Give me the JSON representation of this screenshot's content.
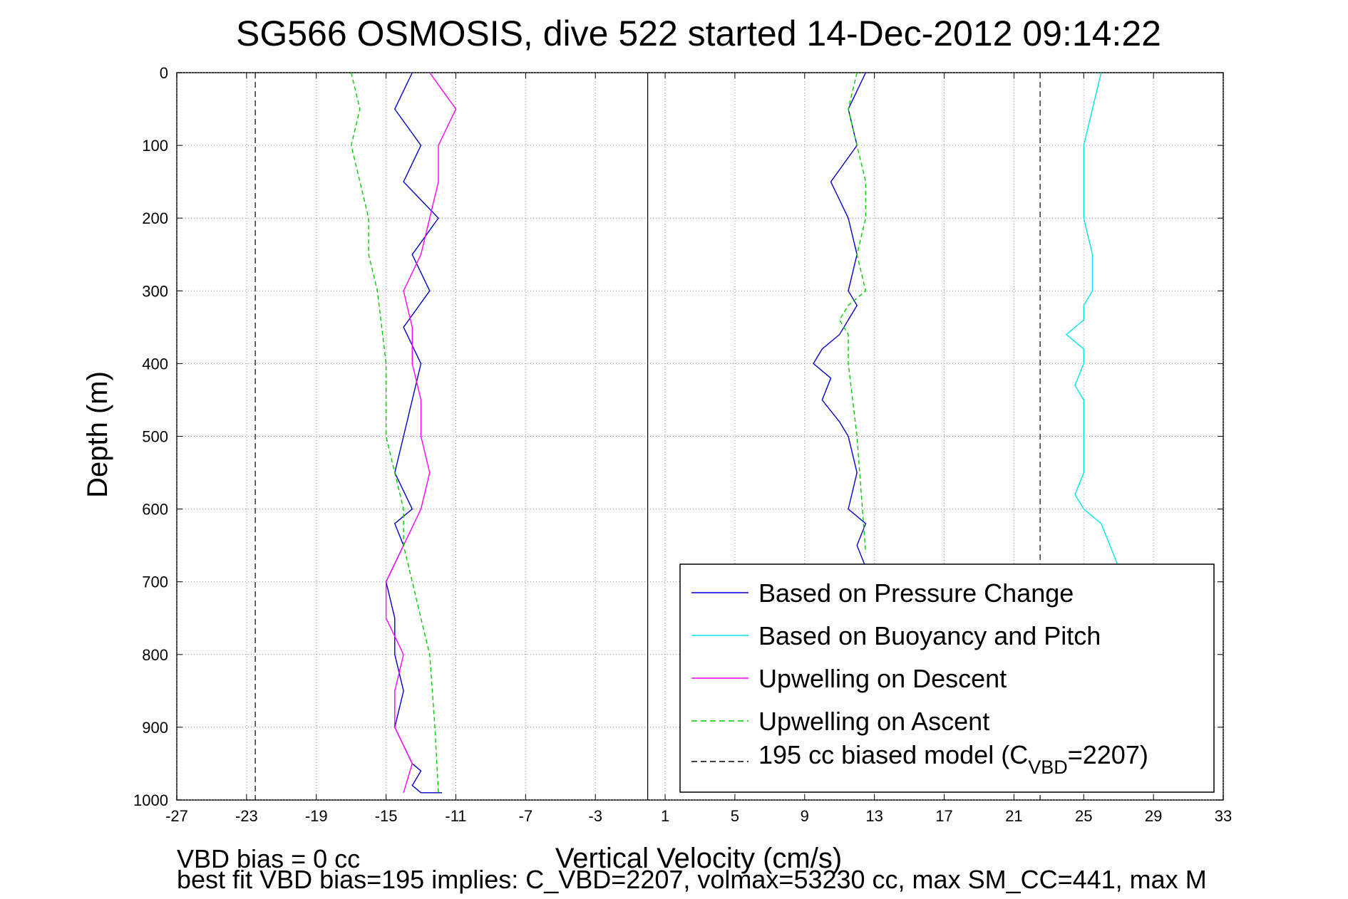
{
  "chart_data": {
    "type": "line",
    "title": "SG566 OSMOSIS, dive 522 started 14-Dec-2012 09:14:22",
    "xlabel": "Vertical Velocity (cm/s)",
    "ylabel": "Depth (m)",
    "xlim": [
      -27,
      33
    ],
    "ylim": [
      0,
      1000
    ],
    "y_reversed": true,
    "grid": true,
    "legend_position": "bottom-right",
    "xticks": [
      "-27",
      "-23",
      "-19",
      "-15",
      "-11",
      "-7",
      "-3",
      "1",
      "5",
      "9",
      "13",
      "17",
      "21",
      "25",
      "29",
      "33"
    ],
    "yticks": [
      "0",
      "100",
      "200",
      "300",
      "400",
      "500",
      "600",
      "700",
      "800",
      "900",
      "1000"
    ],
    "series": [
      {
        "name": "Based on Pressure Change",
        "color": "#0000cc",
        "style": "solid",
        "segments": [
          {
            "x": [
              -13.5,
              -14.5,
              -13,
              -14,
              -12,
              -13.5,
              -12.5,
              -14,
              -13,
              -13.5,
              -14,
              -14.5,
              -13.5,
              -14.5,
              -14,
              -15,
              -14.5,
              -14.5,
              -14,
              -14.5,
              -13.5,
              -13,
              -13.5,
              -13,
              -12.5,
              -12,
              -12,
              -12.2,
              -11.8,
              -12
            ],
            "y": [
              0,
              50,
              100,
              150,
              200,
              250,
              300,
              350,
              400,
              450,
              500,
              550,
              600,
              620,
              650,
              700,
              750,
              800,
              850,
              900,
              950,
              960,
              980,
              990,
              990,
              990,
              990,
              990,
              990,
              990
            ]
          },
          {
            "x": [
              12.5,
              11.5,
              12,
              10.5,
              11.5,
              12,
              11.5,
              12,
              11.5,
              11,
              10,
              9.5,
              10.5,
              10,
              11,
              11.5,
              12,
              11.5,
              12.5,
              12,
              12.5
            ],
            "y": [
              0,
              50,
              100,
              150,
              200,
              250,
              300,
              320,
              340,
              360,
              380,
              400,
              420,
              450,
              480,
              500,
              550,
              600,
              620,
              650,
              680
            ]
          }
        ]
      },
      {
        "name": "Based on Buoyancy and Pitch",
        "color": "#00e5ee",
        "style": "solid",
        "segments": [
          {
            "x": [
              26,
              25.5,
              25,
              25,
              25,
              25.5,
              25.5,
              25,
              25,
              24,
              25,
              25,
              24.5,
              25,
              25,
              25,
              24.5,
              25,
              26,
              26.5,
              27
            ],
            "y": [
              0,
              50,
              100,
              150,
              200,
              250,
              300,
              320,
              340,
              360,
              380,
              400,
              430,
              450,
              500,
              550,
              580,
              600,
              620,
              650,
              680
            ]
          }
        ]
      },
      {
        "name": "Upwelling on Descent",
        "color": "#ff00ff",
        "style": "solid",
        "segments": [
          {
            "x": [
              -12.5,
              -11,
              -12,
              -12,
              -12.5,
              -13,
              -14,
              -13.5,
              -13.5,
              -13,
              -13,
              -12.5,
              -13,
              -14,
              -15,
              -15,
              -14,
              -14.5,
              -14.5,
              -13.5,
              -14
            ],
            "y": [
              0,
              50,
              100,
              150,
              200,
              250,
              300,
              350,
              400,
              450,
              500,
              550,
              600,
              650,
              700,
              750,
              800,
              850,
              900,
              950,
              990
            ]
          }
        ]
      },
      {
        "name": "Upwelling on Ascent",
        "color": "#00cc00",
        "style": "dashed",
        "segments": [
          {
            "x": [
              -17,
              -16.5,
              -17,
              -16.5,
              -16,
              -16,
              -15.5,
              -15,
              -15,
              -15,
              -14.5,
              -14,
              -14,
              -13.5,
              -13,
              -12.5,
              -12.2,
              -12
            ],
            "y": [
              0,
              50,
              100,
              150,
              200,
              250,
              300,
              400,
              450,
              500,
              550,
              600,
              650,
              700,
              750,
              800,
              900,
              990
            ]
          },
          {
            "x": [
              12,
              11.5,
              12,
              12.5,
              12.5,
              12,
              12.5,
              11.5,
              11,
              11.5,
              11.5,
              12,
              12.5
            ],
            "y": [
              0,
              50,
              100,
              150,
              200,
              250,
              300,
              320,
              340,
              360,
              400,
              500,
              660
            ]
          }
        ]
      }
    ],
    "reference_lines": [
      {
        "name": "195 cc biased model (C",
        "subscript": "VBD",
        "suffix": "=2207)",
        "x": -22.5,
        "color": "#000000",
        "style": "dashed"
      },
      {
        "x": 22.5,
        "color": "#000000",
        "style": "dashed"
      },
      {
        "x": 0,
        "color": "#000000",
        "style": "solid"
      }
    ]
  },
  "footer": {
    "line1": "VBD bias = 0 cc",
    "line2": "best fit VBD bias=195 implies: C_VBD=2207, volmax=53230 cc, max SM_CC=441, max M"
  }
}
